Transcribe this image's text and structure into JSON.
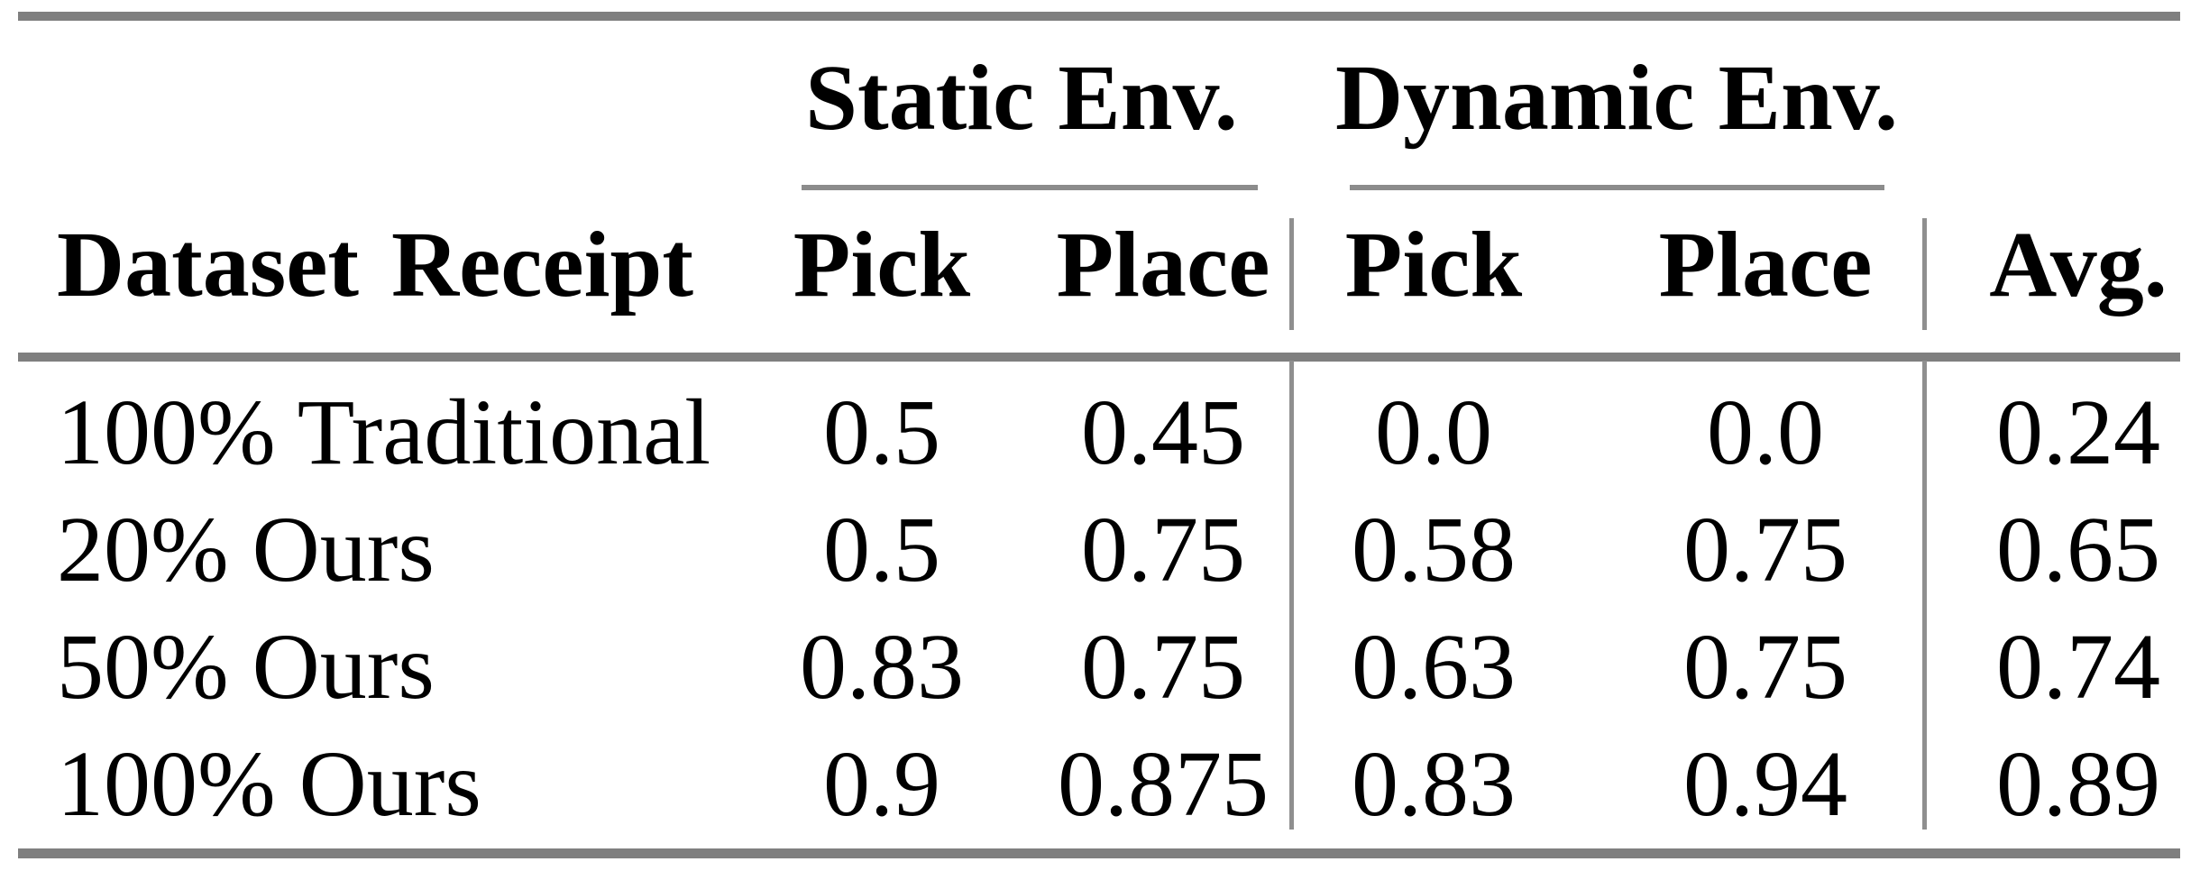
{
  "table": {
    "groups": {
      "static_label": "Static Env.",
      "dynamic_label": "Dynamic Env."
    },
    "header": {
      "dataset": "Dataset Receipt",
      "static_pick": "Pick",
      "static_place": "Place",
      "dynamic_pick": "Pick",
      "dynamic_place": "Place",
      "avg": "Avg."
    },
    "rows": [
      {
        "label": "100% Traditional",
        "static_pick": "0.5",
        "static_place": "0.45",
        "dynamic_pick": "0.0",
        "dynamic_place": "0.0",
        "avg": "0.24"
      },
      {
        "label": "20% Ours",
        "static_pick": "0.5",
        "static_place": "0.75",
        "dynamic_pick": "0.58",
        "dynamic_place": "0.75",
        "avg": "0.65"
      },
      {
        "label": "50% Ours",
        "static_pick": "0.83",
        "static_place": "0.75",
        "dynamic_pick": "0.63",
        "dynamic_place": "0.75",
        "avg": "0.74"
      },
      {
        "label": "100% Ours",
        "static_pick": "0.9",
        "static_place": "0.875",
        "dynamic_pick": "0.83",
        "dynamic_place": "0.94",
        "avg": "0.89"
      }
    ]
  },
  "chart_data": {
    "type": "table",
    "columns": [
      "Dataset Receipt",
      "Static Env. Pick",
      "Static Env. Place",
      "Dynamic Env. Pick",
      "Dynamic Env. Place",
      "Avg."
    ],
    "rows": [
      [
        "100% Traditional",
        0.5,
        0.45,
        0.0,
        0.0,
        0.24
      ],
      [
        "20% Ours",
        0.5,
        0.75,
        0.58,
        0.75,
        0.65
      ],
      [
        "50% Ours",
        0.83,
        0.75,
        0.63,
        0.75,
        0.74
      ],
      [
        "100% Ours",
        0.9,
        0.875,
        0.83,
        0.94,
        0.89
      ]
    ]
  },
  "colors": {
    "rule_heavy": "#7f7f7f",
    "rule_thin": "#8c8c8c",
    "rule_vertical": "#8f8f8f",
    "text": "#000000",
    "background": "#ffffff"
  }
}
